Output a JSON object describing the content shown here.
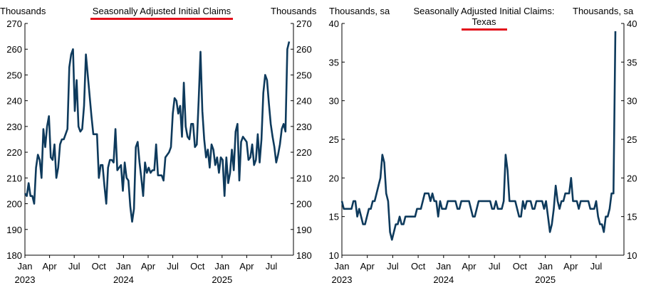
{
  "colors": {
    "line": "#0e3a5c",
    "accent_underline": "#e3101b",
    "axis": "#000000"
  },
  "chart_data": [
    {
      "type": "line",
      "title": "Seasonally Adjusted Initial Claims",
      "ylabel_left": "Thousands",
      "ylabel_right": "Thousands",
      "ylim_left": [
        180,
        270
      ],
      "ylim_right": [
        180,
        270
      ],
      "yticks_left": [
        "270",
        "260",
        "250",
        "240",
        "230",
        "220",
        "210",
        "200",
        "190",
        "180"
      ],
      "yticks_right": [
        "270",
        "260",
        "250",
        "240",
        "230",
        "220",
        "210",
        "200",
        "190",
        "180"
      ],
      "xticks": [
        {
          "label": "Jan",
          "year": "2023"
        },
        {
          "label": "Apr",
          "year": ""
        },
        {
          "label": "Jul",
          "year": ""
        },
        {
          "label": "Oct",
          "year": ""
        },
        {
          "label": "Jan",
          "year": "2024"
        },
        {
          "label": "Apr",
          "year": ""
        },
        {
          "label": "Jul",
          "year": ""
        },
        {
          "label": "Oct",
          "year": ""
        },
        {
          "label": "Jan",
          "year": "2025"
        },
        {
          "label": "Apr",
          "year": ""
        },
        {
          "label": "Jul",
          "year": ""
        }
      ],
      "grid": false,
      "series": [
        {
          "values": [
            204,
            203,
            208,
            203,
            203,
            200,
            214,
            219,
            217,
            210,
            229,
            222,
            230,
            234,
            218,
            217,
            223,
            210,
            214,
            223,
            225,
            225,
            227,
            229,
            253,
            258,
            260,
            236,
            248,
            230,
            228,
            229,
            238,
            258,
            250,
            242,
            234,
            227,
            227,
            227,
            210,
            215,
            215,
            207,
            200,
            214,
            217,
            217,
            216,
            229,
            213,
            214,
            215,
            205,
            216,
            210,
            209,
            199,
            193,
            198,
            222,
            224,
            216,
            210,
            203,
            216,
            212,
            214,
            212,
            213,
            213,
            223,
            211,
            211,
            211,
            209,
            218,
            219,
            220,
            222,
            235,
            241,
            240,
            235,
            238,
            226,
            247,
            230,
            226,
            225,
            231,
            231,
            222,
            223,
            240,
            259,
            236,
            225,
            218,
            221,
            214,
            223,
            221,
            215,
            218,
            212,
            218,
            217,
            203,
            218,
            208,
            212,
            221,
            213,
            228,
            231,
            209,
            224,
            226,
            225,
            224,
            217,
            218,
            223,
            215,
            217,
            227,
            216,
            225,
            243,
            250,
            248,
            239,
            231,
            226,
            222,
            216,
            219,
            223,
            229,
            231,
            228,
            260,
            263
          ]
        }
      ]
    },
    {
      "type": "line",
      "title": "Seasonally Adjusted Initial Claims: Texas",
      "ylabel_left": "Thousands, sa",
      "ylabel_right": "Thousands, sa",
      "ylim_left": [
        10,
        40
      ],
      "ylim_right": [
        10,
        40
      ],
      "yticks_left": [
        "40",
        "35",
        "30",
        "25",
        "20",
        "15",
        "10"
      ],
      "yticks_right": [
        "40",
        "35",
        "30",
        "25",
        "20",
        "15",
        "10"
      ],
      "xticks": [
        {
          "label": "Jan",
          "year": "2023"
        },
        {
          "label": "Apr",
          "year": ""
        },
        {
          "label": "Jul",
          "year": ""
        },
        {
          "label": "Oct",
          "year": ""
        },
        {
          "label": "Jan",
          "year": "2024"
        },
        {
          "label": "Apr",
          "year": ""
        },
        {
          "label": "Jul",
          "year": ""
        },
        {
          "label": "Oct",
          "year": ""
        },
        {
          "label": "Jan",
          "year": "2025"
        },
        {
          "label": "Apr",
          "year": ""
        },
        {
          "label": "Jul",
          "year": ""
        }
      ],
      "grid": false,
      "series": [
        {
          "values": [
            17,
            16,
            16,
            16,
            16,
            16,
            17,
            17,
            15,
            16,
            15,
            14,
            14,
            15,
            16,
            16,
            17,
            17,
            18,
            19,
            20,
            23,
            22,
            18,
            17,
            13,
            12,
            13,
            14,
            14,
            15,
            14,
            14,
            15,
            15,
            15,
            15,
            15,
            15,
            16,
            16,
            16,
            17,
            18,
            18,
            18,
            17,
            18,
            17,
            17,
            15,
            17,
            16,
            16,
            16,
            17,
            17,
            17,
            17,
            17,
            16,
            16,
            17,
            17,
            17,
            17,
            17,
            16,
            15,
            15,
            16,
            17,
            17,
            17,
            17,
            17,
            17,
            17,
            16,
            16,
            17,
            16,
            16,
            16,
            17,
            23,
            21,
            17,
            17,
            17,
            17,
            16,
            15,
            15,
            17,
            16,
            17,
            17,
            17,
            16,
            16,
            17,
            17,
            17,
            17,
            16,
            17,
            15,
            13,
            14,
            16,
            19,
            17,
            16,
            17,
            17,
            18,
            18,
            18,
            20,
            17,
            17,
            17,
            16,
            17,
            17,
            17,
            17,
            17,
            16,
            16,
            16,
            17,
            15,
            14,
            14,
            13,
            15,
            15,
            16,
            18,
            18,
            39
          ]
        }
      ]
    }
  ]
}
